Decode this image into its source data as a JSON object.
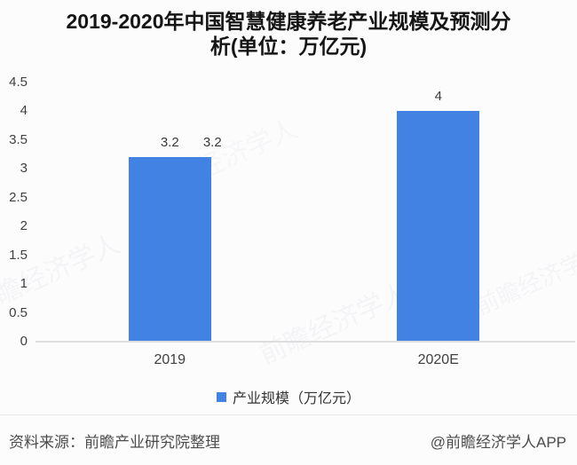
{
  "header": {
    "title": "2019-2020年中国智慧健康养老产业规模及预测分析(单位：万亿元)"
  },
  "chart_data": {
    "type": "bar",
    "title": "2019-2020年中国智慧健康养老产业规模及预测分析(单位：万亿元)",
    "categories": [
      "2019",
      "2020E"
    ],
    "series": [
      {
        "name": "产业规模（万亿元）",
        "values": [
          3.2,
          4
        ]
      }
    ],
    "value_labels": [
      "3.2",
      "4"
    ],
    "ghost_value_label": "3.2",
    "ylim": [
      0,
      4.5
    ],
    "ytick_labels": [
      "0",
      "0.5",
      "1",
      "1.5",
      "2",
      "2.5",
      "3",
      "3.5",
      "4",
      "4.5"
    ],
    "grid": false,
    "legend_position": "bottom",
    "bar_color": "#4282e2",
    "xlabel": "",
    "ylabel": ""
  },
  "legend": {
    "label": "产业规模（万亿元）",
    "swatch_color": "#4282e2"
  },
  "footer": {
    "source": "资料来源：前瞻产业研究院整理",
    "credit": "@前瞻经济学人APP"
  },
  "watermark": {
    "text": "前瞻经济学人"
  }
}
